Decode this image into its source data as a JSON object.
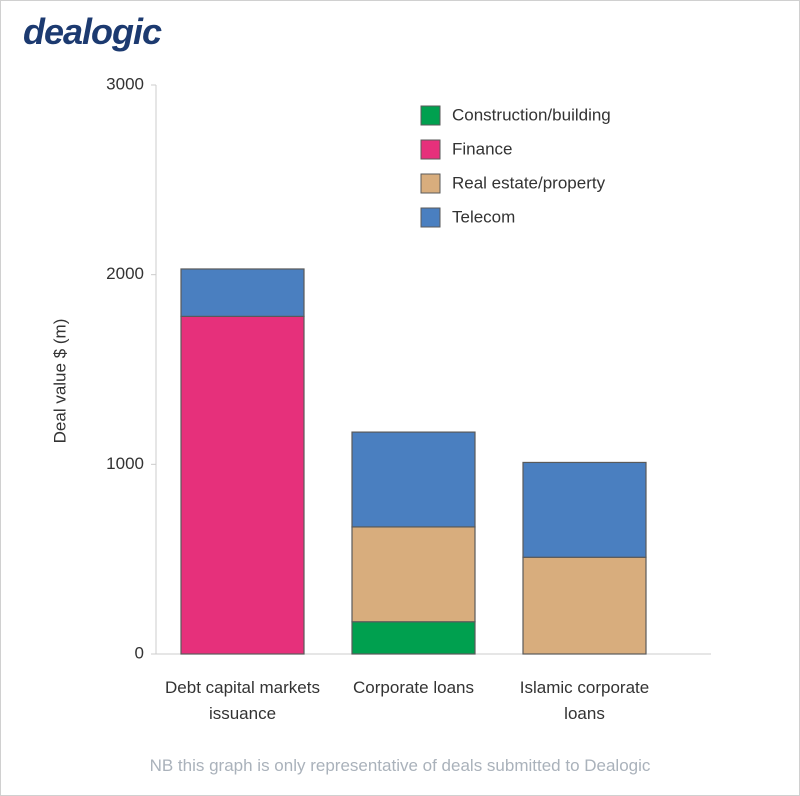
{
  "brand": "dealogic",
  "footnote": "NB this graph is only representative of deals submitted to Dealogic",
  "chart_data": {
    "type": "stacked_bar",
    "y_label": "Deal value $ (m)",
    "categories": [
      "Debt capital markets issuance",
      "Corporate loans",
      "Islamic corporate loans"
    ],
    "series": [
      {
        "name": "Construction/building",
        "color": "#00a04f",
        "values": [
          0,
          170,
          0
        ]
      },
      {
        "name": "Finance",
        "color": "#e6307b",
        "values": [
          1780,
          0,
          0
        ]
      },
      {
        "name": "Real estate/property",
        "color": "#d8ad7d",
        "values": [
          0,
          500,
          510
        ]
      },
      {
        "name": "Telecom",
        "color": "#4a7fc0",
        "values": [
          250,
          500,
          500
        ]
      }
    ],
    "ylim": [
      0,
      3000
    ],
    "yticks": [
      0,
      1000,
      2000,
      3000
    ],
    "grid": false,
    "legend": "top-right"
  }
}
